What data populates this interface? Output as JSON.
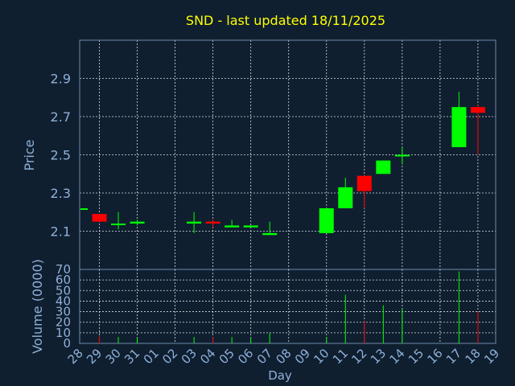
{
  "chart_data": {
    "type": "candlestick",
    "title": "SND - last updated 18/11/2025",
    "xlabel": "Day",
    "price_panel": {
      "ylabel": "Price",
      "ylim": [
        1.9,
        3.1
      ],
      "yticks": [
        "2.1",
        "2.3",
        "2.5",
        "2.7",
        "2.9"
      ],
      "grid": true
    },
    "volume_panel": {
      "ylabel": "Volume (0000)",
      "ylim": [
        0,
        70
      ],
      "yticks": [
        "0",
        "10",
        "20",
        "30",
        "40",
        "50",
        "60",
        "70"
      ],
      "grid": true
    },
    "x_tick_labels": [
      "28",
      "29",
      "30",
      "31",
      "01",
      "02",
      "03",
      "04",
      "05",
      "06",
      "07",
      "08",
      "09",
      "10",
      "11",
      "12",
      "13",
      "14",
      "15",
      "16",
      "17",
      "18",
      "19"
    ],
    "candles": [
      {
        "x": "28",
        "open": 2.22,
        "close": 2.22,
        "high": 2.22,
        "low": 2.22,
        "volume": 0
      },
      {
        "x": "29",
        "open": 2.19,
        "close": 2.15,
        "high": 2.19,
        "low": 2.15,
        "volume": 7
      },
      {
        "x": "30",
        "open": 2.14,
        "close": 2.14,
        "high": 2.2,
        "low": 2.11,
        "volume": 6
      },
      {
        "x": "31",
        "open": 2.14,
        "close": 2.15,
        "high": 2.16,
        "low": 2.13,
        "volume": 5
      },
      {
        "x": "03",
        "open": 2.14,
        "close": 2.15,
        "high": 2.2,
        "low": 2.09,
        "volume": 6
      },
      {
        "x": "04",
        "open": 2.15,
        "close": 2.14,
        "high": 2.16,
        "low": 2.12,
        "volume": 6
      },
      {
        "x": "05",
        "open": 2.12,
        "close": 2.13,
        "high": 2.16,
        "low": 2.12,
        "volume": 6
      },
      {
        "x": "06",
        "open": 2.12,
        "close": 2.13,
        "high": 2.13,
        "low": 2.12,
        "volume": 5
      },
      {
        "x": "07",
        "open": 2.08,
        "close": 2.09,
        "high": 2.15,
        "low": 2.08,
        "volume": 10
      },
      {
        "x": "10",
        "open": 2.09,
        "close": 2.22,
        "high": 2.22,
        "low": 2.09,
        "volume": 6
      },
      {
        "x": "11",
        "open": 2.22,
        "close": 2.33,
        "high": 2.38,
        "low": 2.22,
        "volume": 46
      },
      {
        "x": "12",
        "open": 2.39,
        "close": 2.31,
        "high": 2.39,
        "low": 2.22,
        "volume": 21
      },
      {
        "x": "13",
        "open": 2.4,
        "close": 2.47,
        "high": 2.47,
        "low": 2.4,
        "volume": 36
      },
      {
        "x": "14",
        "open": 2.5,
        "close": 2.5,
        "high": 2.54,
        "low": 2.45,
        "volume": 33
      },
      {
        "x": "17",
        "open": 2.54,
        "close": 2.75,
        "high": 2.83,
        "low": 2.54,
        "volume": 68
      },
      {
        "x": "18",
        "open": 2.75,
        "close": 2.72,
        "high": 2.76,
        "low": 2.5,
        "volume": 30
      }
    ],
    "colors": {
      "up": "#00ff00",
      "down": "#ff0000"
    }
  }
}
